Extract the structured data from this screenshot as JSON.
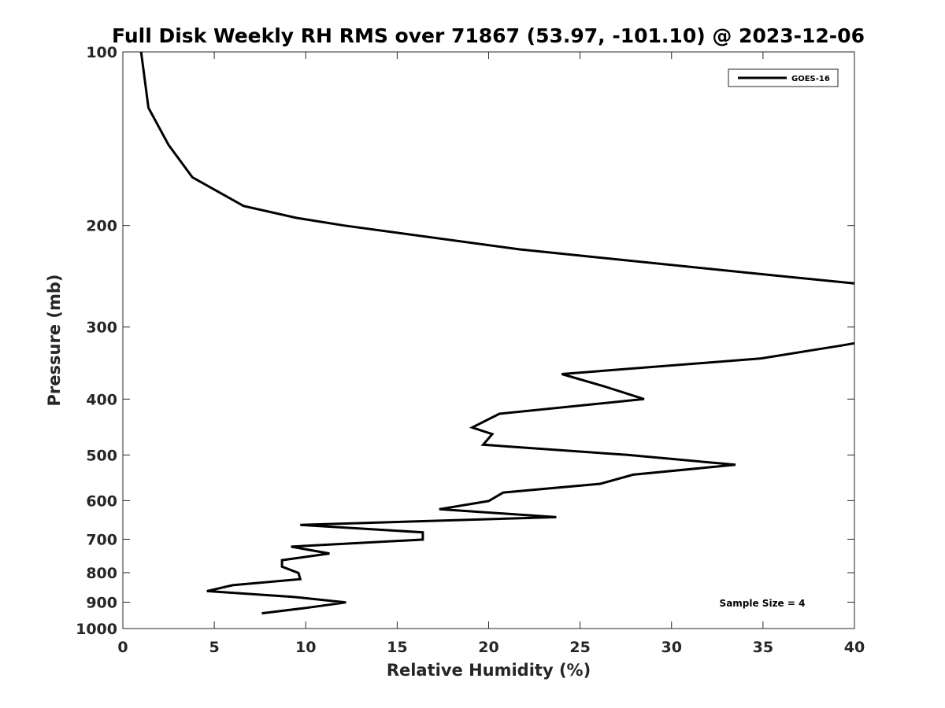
{
  "chart_data": {
    "type": "line",
    "title": "Full Disk Weekly RH RMS over 71867 (53.97, -101.10) @ 2023-12-06",
    "xlabel": "Relative Humidity (%)",
    "ylabel": "Pressure (mb)",
    "xlim": [
      0,
      40
    ],
    "ylim": [
      100,
      1000
    ],
    "yscale": "log",
    "y_reversed": true,
    "grid": false,
    "legend_position": "top-right",
    "xticks": [
      0,
      5,
      10,
      15,
      20,
      25,
      30,
      35,
      40
    ],
    "yticks": [
      100,
      200,
      300,
      400,
      500,
      600,
      700,
      800,
      900,
      1000
    ],
    "annotation": "Sample Size = 4",
    "series": [
      {
        "name": "GOES-16",
        "color": "#000000",
        "points": [
          [
            1.0,
            100
          ],
          [
            1.4,
            125
          ],
          [
            2.5,
            145
          ],
          [
            3.8,
            165
          ],
          [
            6.6,
            185
          ],
          [
            9.5,
            194
          ],
          [
            12.1,
            200
          ],
          [
            21.7,
            220
          ],
          [
            34.4,
            242
          ],
          [
            40.0,
            252
          ],
          null,
          [
            40.0,
            320
          ],
          [
            39.3,
            323
          ],
          [
            34.9,
            340
          ],
          [
            24.0,
            362
          ],
          [
            26.3,
            380
          ],
          [
            28.5,
            400
          ],
          [
            20.6,
            424
          ],
          [
            19.1,
            448
          ],
          [
            20.2,
            460
          ],
          [
            19.7,
            480
          ],
          [
            27.6,
            500
          ],
          [
            33.5,
            520
          ],
          [
            27.9,
            541
          ],
          [
            26.1,
            561
          ],
          [
            20.8,
            581
          ],
          [
            20.0,
            601
          ],
          [
            17.3,
            621
          ],
          [
            23.7,
            641
          ],
          [
            9.7,
            661
          ],
          [
            16.4,
            681
          ],
          [
            16.4,
            701
          ],
          [
            9.2,
            721
          ],
          [
            11.3,
            741
          ],
          [
            8.7,
            761
          ],
          [
            8.7,
            781
          ],
          [
            9.6,
            801
          ],
          [
            9.7,
            821
          ],
          [
            6.0,
            841
          ],
          [
            4.6,
            861
          ],
          [
            9.3,
            881
          ],
          [
            12.2,
            901
          ],
          [
            10.0,
            921
          ],
          [
            7.6,
            941
          ]
        ]
      }
    ]
  }
}
